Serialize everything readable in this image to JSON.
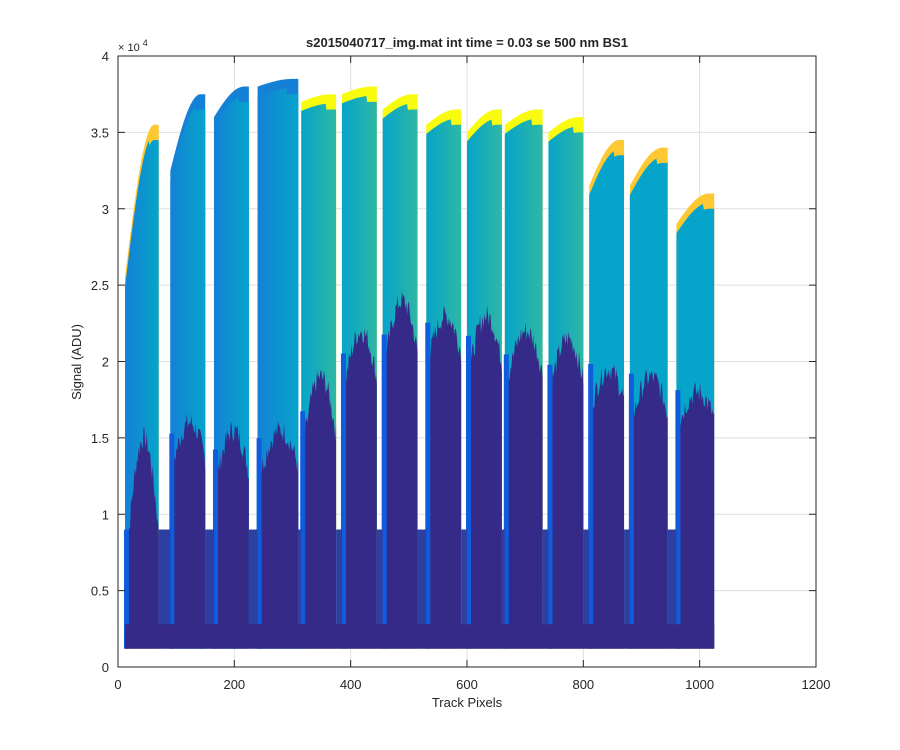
{
  "chart_data": {
    "type": "area",
    "title": "s2015040717_img.mat int time = 0.03 se  500 nm BS1",
    "xlabel": "Track Pixels",
    "ylabel": "Signal (ADU)",
    "y_exponent_label": "× 10",
    "y_exponent_power": "4",
    "y_tick_scale": 10000,
    "xlim": [
      0,
      1200
    ],
    "ylim": [
      0,
      40000
    ],
    "xticks": [
      0,
      200,
      400,
      600,
      800,
      1000,
      1200
    ],
    "xtick_labels": [
      "0",
      "200",
      "400",
      "600",
      "800",
      "1000",
      "1200"
    ],
    "yticks": [
      0,
      5000,
      10000,
      15000,
      20000,
      25000,
      30000,
      35000,
      40000
    ],
    "ytick_labels": [
      "0",
      "0.5",
      "1",
      "1.5",
      "2",
      "2.5",
      "3",
      "3.5",
      "4"
    ],
    "grid": true,
    "colormap": [
      "#352a87",
      "#0f5cdd",
      "#1481d6",
      "#06a4ca",
      "#2eb7a4",
      "#87bf77",
      "#d1bb59",
      "#fec832",
      "#f9fb0e"
    ],
    "baseline": 1200,
    "segments": [
      {
        "x_start": 12,
        "x_end": 70,
        "low_start": 6000,
        "low_peak": 15000,
        "high_start": 25500,
        "high_end": 35500,
        "top_color": "#fec832"
      },
      {
        "x_start": 90,
        "x_end": 150,
        "low_start": 12500,
        "low_peak": 16000,
        "high_start": 32500,
        "high_end": 37500,
        "top_color": "#1481d6"
      },
      {
        "x_start": 165,
        "x_end": 225,
        "low_start": 11500,
        "low_peak": 15500,
        "high_start": 36000,
        "high_end": 38000,
        "top_color": "#1481d6"
      },
      {
        "x_start": 240,
        "x_end": 310,
        "low_start": 12000,
        "low_peak": 15500,
        "high_start": 38000,
        "high_end": 38500,
        "top_color": "#1481d6"
      },
      {
        "x_start": 315,
        "x_end": 375,
        "low_start": 13500,
        "low_peak": 19000,
        "high_start": 37000,
        "high_end": 37500,
        "top_color": "#f9fb0e"
      },
      {
        "x_start": 385,
        "x_end": 445,
        "low_start": 17500,
        "low_peak": 22000,
        "high_start": 37500,
        "high_end": 38000,
        "top_color": "#f9fb0e"
      },
      {
        "x_start": 455,
        "x_end": 515,
        "low_start": 19000,
        "low_peak": 24000,
        "high_start": 36500,
        "high_end": 37500,
        "top_color": "#f9fb0e"
      },
      {
        "x_start": 530,
        "x_end": 590,
        "low_start": 19500,
        "low_peak": 23000,
        "high_start": 35500,
        "high_end": 36500,
        "top_color": "#f9fb0e"
      },
      {
        "x_start": 600,
        "x_end": 660,
        "low_start": 18500,
        "low_peak": 23000,
        "high_start": 35000,
        "high_end": 36500,
        "top_color": "#f9fb0e"
      },
      {
        "x_start": 665,
        "x_end": 730,
        "low_start": 18000,
        "low_peak": 22000,
        "high_start": 35500,
        "high_end": 36500,
        "top_color": "#f9fb0e"
      },
      {
        "x_start": 740,
        "x_end": 800,
        "low_start": 17500,
        "low_peak": 21500,
        "high_start": 35000,
        "high_end": 36000,
        "top_color": "#f9fb0e"
      },
      {
        "x_start": 810,
        "x_end": 870,
        "low_start": 16500,
        "low_peak": 19500,
        "high_start": 31500,
        "high_end": 34500,
        "top_color": "#fec832"
      },
      {
        "x_start": 880,
        "x_end": 945,
        "low_start": 15500,
        "low_peak": 19000,
        "high_start": 31500,
        "high_end": 34000,
        "top_color": "#fec832"
      },
      {
        "x_start": 960,
        "x_end": 1025,
        "low_start": 15500,
        "low_peak": 18000,
        "high_start": 29000,
        "high_end": 31000,
        "top_color": "#fec832"
      }
    ]
  }
}
